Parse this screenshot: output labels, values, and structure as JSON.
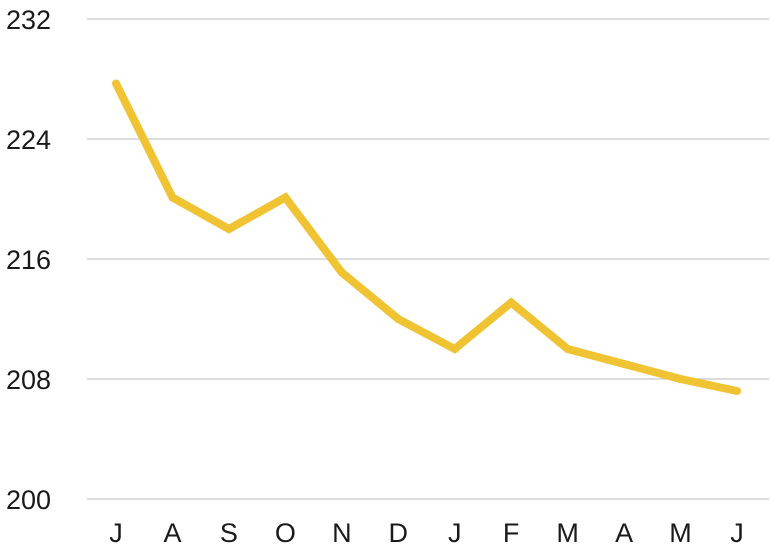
{
  "chart_data": {
    "type": "line",
    "title": "",
    "xlabel": "",
    "ylabel": "",
    "categories": [
      "J",
      "A",
      "S",
      "O",
      "N",
      "D",
      "J",
      "F",
      "M",
      "A",
      "M",
      "J"
    ],
    "y_ticks": [
      "232",
      "224",
      "216",
      "208",
      "200"
    ],
    "ylim": [
      200,
      232
    ],
    "grid": true,
    "legend": "none",
    "series": [
      {
        "values": [
          227.7,
          220.1,
          218.0,
          220.1,
          215.1,
          212.0,
          210.0,
          213.1,
          210.0,
          209.0,
          208.0,
          207.2
        ],
        "color": "#f0c332"
      }
    ]
  }
}
